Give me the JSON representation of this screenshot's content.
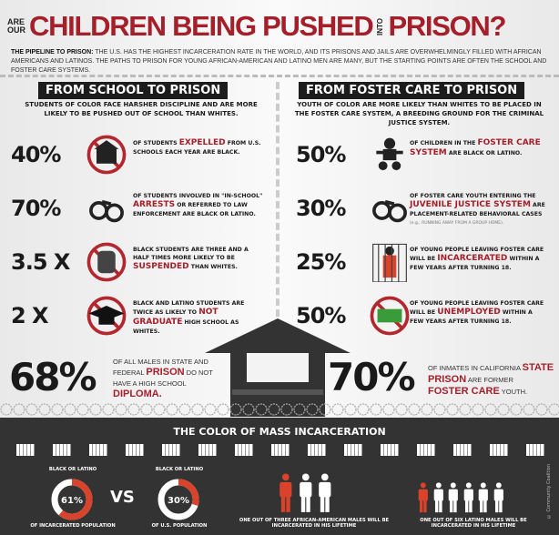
{
  "header": {
    "pre": [
      "ARE",
      "OUR"
    ],
    "main": "CHILDREN BEING PUSHED",
    "into": "INTO",
    "end": "PRISON?",
    "intro_label": "THE PIPELINE TO PRISON:",
    "intro_text": "THE U.S. HAS THE HIGHEST INCARCERATION RATE IN THE WORLD, AND ITS PRISONS AND JAILS ARE OVERWHELMINGLY FILLED WITH AFRICAN AMERICANS AND LATINOS. THE PATHS TO PRISON FOR YOUNG AFRICAN-AMERICAN AND LATINO MEN ARE MANY, BUT THE STARTING POINTS ARE OFTEN THE SCHOOL AND FOSTER CARE SYSTEMS."
  },
  "left": {
    "heading": "FROM  SCHOOL TO PRISON",
    "sub": "STUDENTS OF COLOR FACE HARSHER DISCIPLINE AND ARE MORE LIKELY TO BE PUSHED OUT OF SCHOOL THAN WHITES.",
    "rows": [
      {
        "stat": "40%",
        "icon": "school-icon",
        "a": "OF STUDENTS ",
        "hl": "EXPELLED",
        "b": " FROM U.S. SCHOOLS EACH YEAR ARE BLACK."
      },
      {
        "stat": "70%",
        "icon": "handcuffs-icon",
        "a": "OF STUDENTS INVOLVED IN \"IN-SCHOOL\" ",
        "hl": "ARRESTS",
        "b": " OR REFERRED TO LAW ENFORCEMENT ARE BLACK OR LATINO."
      },
      {
        "stat": "3.5 X",
        "icon": "backpack-icon",
        "a": "BLACK STUDENTS ARE THREE AND A HALF TIMES MORE LIKELY TO BE ",
        "hl": "SUSPENDED",
        "b": " THAN WHITES."
      },
      {
        "stat": "2 X",
        "icon": "graduation-cap-icon",
        "a": "BLACK AND LATINO STUDENTS ARE TWICE AS LIKELY TO ",
        "hl": "NOT GRADUATE",
        "b": " HIGH SCHOOL AS WHITES."
      }
    ]
  },
  "right": {
    "heading": "FROM  FOSTER CARE TO PRISON",
    "sub": "YOUTH OF COLOR ARE MORE LIKELY THAN WHITES TO BE PLACED IN THE FOSTER CARE SYSTEM, A BREEDING GROUND FOR THE CRIMINAL JUSTICE SYSTEM.",
    "rows": [
      {
        "stat": "50%",
        "icon": "baby-icon",
        "a": "OF CHILDREN IN THE ",
        "hl": "FOSTER CARE SYSTEM",
        "b": " ARE BLACK OR LATINO."
      },
      {
        "stat": "30%",
        "icon": "handcuffs-icon",
        "a": "OF FOSTER CARE YOUTH ENTERING THE ",
        "hl": "JUVENILE JUSTICE SYSTEM",
        "b": " ARE PLACEMENT-RELATED BEHAVIORAL CASES",
        "note": "(e.g., RUNNING AWAY FROM A GROUP HOME)."
      },
      {
        "stat": "25%",
        "icon": "prisoner-icon",
        "a": "OF YOUNG PEOPLE LEAVING FOSTER CARE WILL BE ",
        "hl": "INCARCERATED",
        "b": " WITHIN A FEW YEARS AFTER TURNING 18."
      },
      {
        "stat": "50%",
        "icon": "money-icon",
        "a": "OF YOUNG PEOPLE LEAVING FOSTER CARE WILL BE ",
        "hl": "UNEMPLOYED",
        "b": " WITHIN A FEW YEARS AFTER TURNING 18."
      }
    ]
  },
  "bottom": {
    "left": {
      "stat": "68%",
      "a": "OF ALL MALES IN STATE AND FEDERAL ",
      "hl1": "PRISON",
      "b": " DO NOT HAVE A HIGH SCHOOL ",
      "hl2": "DIPLOMA."
    },
    "right": {
      "stat": "70%",
      "a": "OF INMATES IN CALIFORNIA ",
      "hl1": "STATE PRISON",
      "b": " ARE FORMER ",
      "hl2": "FOSTER CARE",
      "c": " YOUTH."
    }
  },
  "mass": {
    "title": "THE COLOR OF MASS INCARCERATION",
    "donut1": {
      "top": "BLACK OR LATINO",
      "value": 61,
      "label": "61%",
      "bottom": "OF INCARCERATED POPULATION"
    },
    "vs": "VS",
    "donut2": {
      "top": "BLACK OR LATINO",
      "value": 30,
      "label": "30%",
      "bottom": "OF U.S. POPULATION"
    },
    "people1": {
      "total": 3,
      "highlighted": 1,
      "text": "ONE OUT OF THREE AFRICAN-AMERICAN MALES WILL BE INCARCERATED IN HIS LIFETIME"
    },
    "people2": {
      "total": 6,
      "highlighted": 1,
      "text": "ONE OUT OF SIX LATINO MALES WILL BE INCARCERATED IN HIS LIFETIME"
    },
    "credit": "© Community Coalition"
  },
  "colors": {
    "red": "#a51f2b",
    "dark": "#333333",
    "orange": "#d9422b"
  }
}
